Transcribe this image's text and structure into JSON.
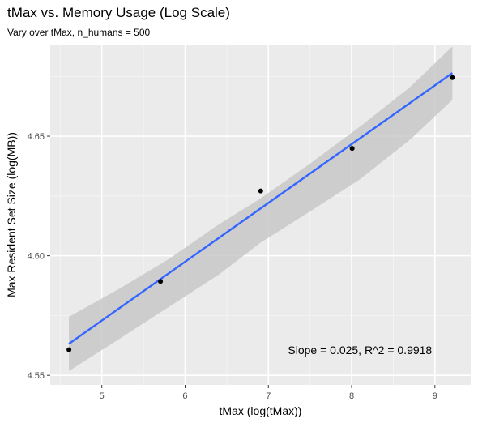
{
  "chart_data": {
    "type": "scatter",
    "title": "tMax vs. Memory Usage (Log Scale)",
    "subtitle": "Vary over tMax, n_humans = 500",
    "xlabel": "tMax (log(tMax))",
    "ylabel": "Max Resident Set Size (log(MB))",
    "xlim": [
      4.38,
      9.43
    ],
    "ylim": [
      4.546,
      4.6883
    ],
    "x_ticks": [
      5,
      6,
      7,
      8,
      9
    ],
    "y_ticks": [
      4.55,
      4.6,
      4.65
    ],
    "x_tick_labels": [
      "5",
      "6",
      "7",
      "8",
      "9"
    ],
    "y_tick_labels": [
      "4.55",
      "4.60",
      "4.65"
    ],
    "grid": true,
    "points": [
      {
        "x": 4.605,
        "y": 4.5607
      },
      {
        "x": 5.704,
        "y": 4.5893
      },
      {
        "x": 6.908,
        "y": 4.6271
      },
      {
        "x": 8.006,
        "y": 4.6449
      },
      {
        "x": 9.21,
        "y": 4.6745
      }
    ],
    "fit_line": {
      "x": [
        4.605,
        9.21
      ],
      "y": [
        4.5632,
        4.6764
      ]
    },
    "confidence_band": {
      "x": [
        4.605,
        5.2,
        5.8,
        6.4,
        6.908,
        7.5,
        8.1,
        8.7,
        9.21
      ],
      "upper": [
        4.5745,
        4.586,
        4.5985,
        4.613,
        4.624,
        4.6385,
        4.654,
        4.6705,
        4.6875
      ],
      "lower": [
        4.5518,
        4.565,
        4.5785,
        4.592,
        4.6055,
        4.6185,
        4.632,
        4.6485,
        4.6652
      ]
    },
    "annotation": "Slope = 0.025, R^2 = 0.9918",
    "annotation_pos": {
      "x": 8.1,
      "y": 4.5605
    },
    "colors": {
      "panel": "#ebebeb",
      "grid_major": "#ffffff",
      "grid_minor": "#f5f5f5",
      "line": "#3366ff",
      "band": "#c8c8c8",
      "point": "#000000",
      "tick_text": "#4d4d4d"
    }
  }
}
